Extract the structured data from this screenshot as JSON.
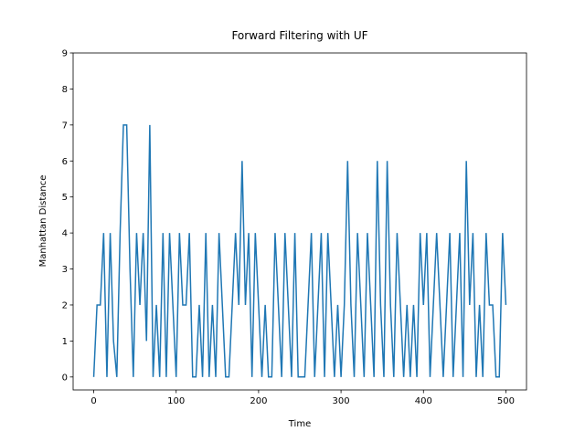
{
  "chart_data": {
    "type": "line",
    "title": "Forward Filtering with UF",
    "x_label": "Time",
    "y_label": "Manhattan Distance",
    "x": [
      0,
      4,
      8,
      12,
      16,
      20,
      24,
      28,
      32,
      36,
      40,
      44,
      48,
      52,
      56,
      60,
      64,
      68,
      72,
      76,
      80,
      84,
      88,
      92,
      96,
      100,
      104,
      108,
      112,
      116,
      120,
      124,
      128,
      132,
      136,
      140,
      144,
      148,
      152,
      156,
      160,
      164,
      168,
      172,
      176,
      180,
      184,
      188,
      192,
      196,
      200,
      204,
      208,
      212,
      216,
      220,
      224,
      228,
      232,
      236,
      240,
      244,
      248,
      252,
      256,
      260,
      264,
      268,
      272,
      276,
      280,
      284,
      288,
      292,
      296,
      300,
      304,
      308,
      312,
      316,
      320,
      324,
      328,
      332,
      336,
      340,
      344,
      348,
      352,
      356,
      360,
      364,
      368,
      372,
      376,
      380,
      384,
      388,
      392,
      396,
      400,
      404,
      408,
      412,
      416,
      420,
      424,
      428,
      432,
      436,
      440,
      444,
      448,
      452,
      456,
      460,
      464,
      468,
      472,
      476,
      480,
      484,
      488,
      492,
      496,
      500
    ],
    "series": [
      {
        "color": "#1f77b4",
        "values": [
          0,
          2,
          2,
          4,
          0,
          4,
          1,
          0,
          4,
          7,
          7,
          3,
          0,
          4,
          2,
          4,
          1,
          7,
          0,
          2,
          0,
          4,
          0,
          4,
          2,
          0,
          4,
          2,
          2,
          4,
          0,
          0,
          2,
          0,
          4,
          0,
          2,
          0,
          4,
          2,
          0,
          0,
          2,
          4,
          2,
          6,
          2,
          4,
          0,
          4,
          2,
          0,
          2,
          0,
          0,
          4,
          2,
          0,
          4,
          2,
          0,
          4,
          0,
          0,
          0,
          2,
          4,
          0,
          2,
          4,
          0,
          4,
          2,
          0,
          2,
          0,
          2,
          6,
          2,
          0,
          4,
          2,
          0,
          4,
          2,
          0,
          6,
          2,
          0,
          6,
          2,
          0,
          4,
          2,
          0,
          2,
          0,
          2,
          0,
          4,
          2,
          4,
          0,
          2,
          4,
          2,
          0,
          2,
          4,
          0,
          2,
          4,
          0,
          6,
          2,
          4,
          0,
          2,
          0,
          4,
          2,
          2,
          0,
          0,
          4,
          2
        ]
      }
    ],
    "xlim": [
      -25,
      525
    ],
    "ylim": [
      -0.36,
      9
    ],
    "xticks": [
      0,
      100,
      200,
      300,
      400,
      500
    ],
    "yticks": [
      0,
      1,
      2,
      3,
      4,
      5,
      6,
      7,
      8,
      9
    ],
    "grid": false
  }
}
